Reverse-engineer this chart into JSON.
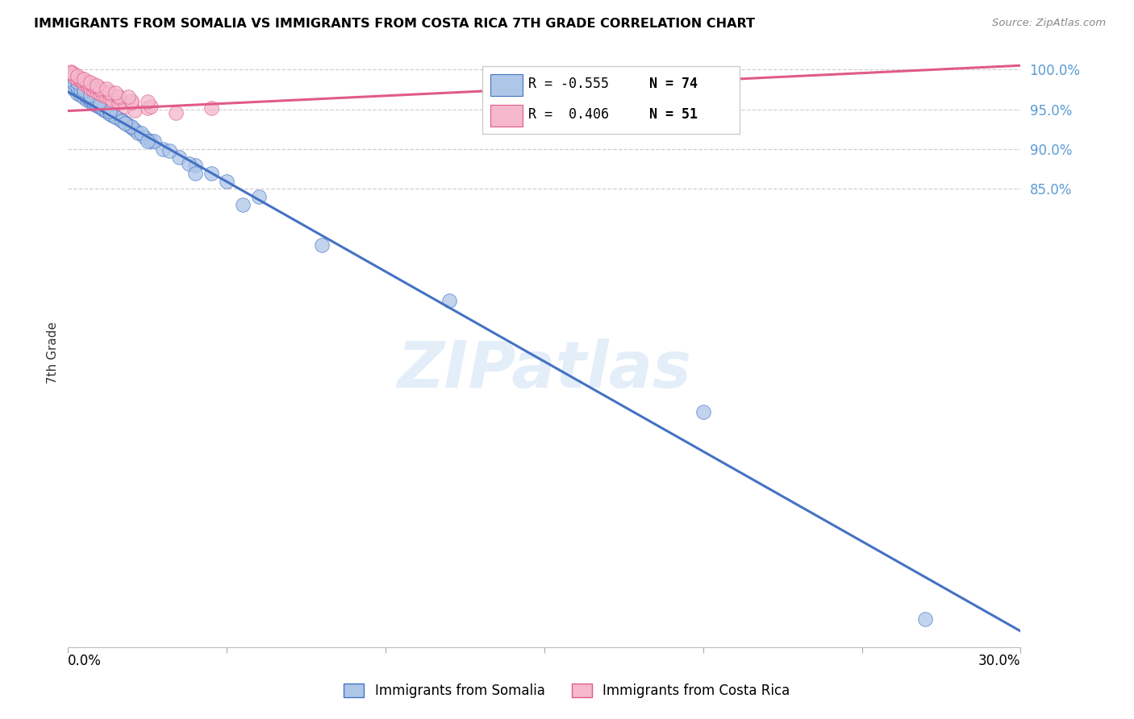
{
  "title": "IMMIGRANTS FROM SOMALIA VS IMMIGRANTS FROM COSTA RICA 7TH GRADE CORRELATION CHART",
  "source": "Source: ZipAtlas.com",
  "ylabel": "7th Grade",
  "xlim": [
    0.0,
    0.3
  ],
  "ylim": [
    0.275,
    1.015
  ],
  "somalia_R": -0.555,
  "somalia_N": 74,
  "costarica_R": 0.406,
  "costarica_N": 51,
  "somalia_color": "#aec6e8",
  "somalia_line_color": "#4472c4",
  "costarica_color": "#f5b8cc",
  "costarica_line_color": "#e05a8a",
  "watermark_color": "#cce0f5",
  "background_color": "#ffffff",
  "grid_color": "#d0d0d0",
  "ytick_color": "#5b9bd5",
  "yticks": [
    1.0,
    0.95,
    0.9,
    0.85
  ],
  "ytick_labels": [
    "100.0%",
    "95.0%",
    "90.0%",
    "85.0%"
  ],
  "somalia_line_x0": 0.0,
  "somalia_line_y0": 0.972,
  "somalia_line_x1": 0.3,
  "somalia_line_y1": 0.295,
  "costarica_line_x0": 0.0,
  "costarica_line_y0": 0.948,
  "costarica_line_x1": 0.3,
  "costarica_line_y1": 1.005,
  "somalia_x": [
    0.001,
    0.002,
    0.002,
    0.003,
    0.003,
    0.004,
    0.004,
    0.005,
    0.005,
    0.006,
    0.006,
    0.007,
    0.007,
    0.008,
    0.008,
    0.009,
    0.009,
    0.01,
    0.01,
    0.011,
    0.011,
    0.012,
    0.013,
    0.014,
    0.015,
    0.016,
    0.017,
    0.018,
    0.019,
    0.02,
    0.021,
    0.022,
    0.024,
    0.026,
    0.03,
    0.035,
    0.04,
    0.045,
    0.05,
    0.06,
    0.001,
    0.002,
    0.003,
    0.004,
    0.005,
    0.006,
    0.007,
    0.008,
    0.009,
    0.01,
    0.011,
    0.012,
    0.013,
    0.015,
    0.017,
    0.02,
    0.023,
    0.027,
    0.032,
    0.038,
    0.001,
    0.003,
    0.005,
    0.007,
    0.01,
    0.013,
    0.018,
    0.025,
    0.04,
    0.055,
    0.08,
    0.12,
    0.2,
    0.27
  ],
  "somalia_y": [
    0.99,
    0.985,
    0.975,
    0.98,
    0.97,
    0.978,
    0.968,
    0.972,
    0.965,
    0.968,
    0.962,
    0.965,
    0.96,
    0.962,
    0.957,
    0.958,
    0.955,
    0.956,
    0.953,
    0.955,
    0.95,
    0.948,
    0.945,
    0.943,
    0.941,
    0.938,
    0.936,
    0.933,
    0.93,
    0.927,
    0.924,
    0.92,
    0.915,
    0.91,
    0.9,
    0.89,
    0.88,
    0.87,
    0.86,
    0.84,
    0.988,
    0.982,
    0.978,
    0.975,
    0.97,
    0.966,
    0.963,
    0.96,
    0.957,
    0.954,
    0.951,
    0.948,
    0.945,
    0.94,
    0.935,
    0.928,
    0.92,
    0.91,
    0.898,
    0.882,
    0.995,
    0.984,
    0.974,
    0.968,
    0.959,
    0.948,
    0.932,
    0.91,
    0.87,
    0.83,
    0.78,
    0.71,
    0.57,
    0.31
  ],
  "costarica_x": [
    0.001,
    0.002,
    0.003,
    0.003,
    0.004,
    0.005,
    0.005,
    0.006,
    0.007,
    0.007,
    0.008,
    0.009,
    0.01,
    0.011,
    0.012,
    0.013,
    0.014,
    0.016,
    0.018,
    0.021,
    0.001,
    0.002,
    0.004,
    0.006,
    0.008,
    0.01,
    0.013,
    0.016,
    0.02,
    0.025,
    0.002,
    0.004,
    0.006,
    0.008,
    0.01,
    0.013,
    0.016,
    0.02,
    0.026,
    0.034,
    0.001,
    0.003,
    0.005,
    0.007,
    0.009,
    0.012,
    0.015,
    0.019,
    0.025,
    0.045,
    0.135
  ],
  "costarica_y": [
    0.997,
    0.993,
    0.99,
    0.988,
    0.986,
    0.984,
    0.982,
    0.98,
    0.978,
    0.976,
    0.974,
    0.972,
    0.97,
    0.968,
    0.966,
    0.964,
    0.962,
    0.958,
    0.954,
    0.949,
    0.995,
    0.991,
    0.987,
    0.983,
    0.979,
    0.975,
    0.97,
    0.965,
    0.959,
    0.952,
    0.994,
    0.989,
    0.985,
    0.981,
    0.977,
    0.972,
    0.967,
    0.961,
    0.954,
    0.946,
    0.996,
    0.992,
    0.988,
    0.984,
    0.98,
    0.976,
    0.971,
    0.966,
    0.96,
    0.952,
    0.975
  ]
}
